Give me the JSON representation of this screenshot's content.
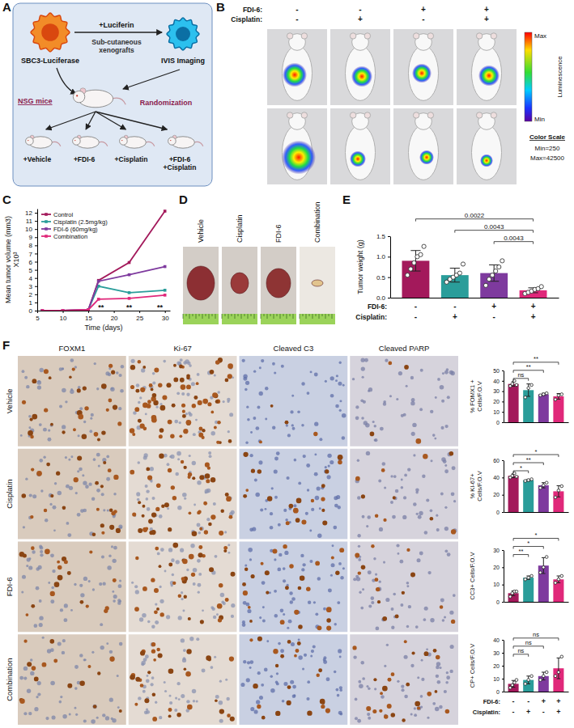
{
  "panels": {
    "A": {
      "letter": "A",
      "cell_line": "SBC3-Luciferase",
      "host": "NSG mice",
      "reagent": "+Luciferin",
      "implant": "Sub-cutaneous xenografts",
      "imaging": "IVIS Imaging",
      "randomization": "Randomization",
      "groups": [
        "+Vehicle",
        "+FDI-6",
        "+Cisplatin",
        "+FDI-6 +Cisplatin"
      ]
    },
    "B": {
      "letter": "B",
      "condition_rows": [
        {
          "label": "FDI-6:",
          "values": [
            "-",
            "-",
            "+",
            "+"
          ]
        },
        {
          "label": "Cisplatin:",
          "values": [
            "-",
            "+",
            "-",
            "+"
          ]
        }
      ],
      "scale_max": "Max",
      "scale_min": "Min",
      "scale_label": "Luminescence",
      "scale_title": "Color Scale",
      "scale_notes": [
        "Min=250",
        "Max=42500"
      ]
    },
    "D": {
      "letter": "D",
      "labels": [
        "Vehicle",
        "Cisplatin",
        "FDI-6",
        "Combination"
      ]
    },
    "F": {
      "letter": "F",
      "columns": [
        "FOXM1",
        "Ki-67",
        "Cleaved C3",
        "Cleaved PARP"
      ],
      "rows": [
        "Vehicle",
        "Cisplatin",
        "FDI-6",
        "Combination"
      ],
      "condition_rows": [
        {
          "label": "FDI-6:",
          "values": [
            "-",
            "-",
            "+",
            "+"
          ]
        },
        {
          "label": "Cisplatin:",
          "values": [
            "-",
            "+",
            "-",
            "+"
          ]
        }
      ]
    }
  },
  "chart_data": [
    {
      "panel": "C",
      "type": "line",
      "x_label": "Time (days)",
      "y_label": "Mean tumor volume (mm3) X10³",
      "x": [
        6,
        10,
        15,
        17,
        23,
        30
      ],
      "series": [
        {
          "name": "Control",
          "color": "#a3195b",
          "values": [
            0,
            0,
            0.1,
            3.7,
            5.9,
            12.2
          ]
        },
        {
          "name": "Cisplatin (2.5mg/kg)",
          "color": "#2a9d9a",
          "values": [
            0,
            0,
            0.1,
            3.0,
            2.2,
            2.5
          ]
        },
        {
          "name": "FDI-6 (60mg/kg)",
          "color": "#7e3a9e",
          "values": [
            0,
            0,
            0.1,
            3.6,
            4.4,
            5.4
          ]
        },
        {
          "name": "Combination",
          "color": "#e0287a",
          "values": [
            0,
            0,
            0.1,
            1.4,
            1.5,
            1.9
          ]
        }
      ],
      "xlim": [
        5,
        31
      ],
      "xticks": [
        5,
        10,
        15,
        20,
        25,
        30
      ],
      "ylim": [
        0,
        12.5
      ],
      "yticks": [
        0,
        1,
        2,
        3,
        4,
        5,
        6,
        7,
        8,
        9,
        10,
        11,
        12
      ],
      "legend": "top-left",
      "marker": "square",
      "line_style": "solid",
      "annotations": [
        {
          "text": "**",
          "x": 17.5,
          "y": 0.4
        },
        {
          "text": "**",
          "x": 23,
          "y": 0.4
        },
        {
          "text": "**",
          "x": 29,
          "y": 0.4
        }
      ]
    },
    {
      "panel": "E",
      "type": "bar",
      "y_label": "Tumor weight (g)",
      "categories": [
        null,
        null,
        null,
        null
      ],
      "values": [
        0.9,
        0.55,
        0.6,
        0.18
      ],
      "error": [
        0.25,
        0.17,
        0.2,
        0.06
      ],
      "points": [
        [
          0.55,
          0.7,
          0.85,
          1.0,
          1.05,
          1.25
        ],
        [
          0.38,
          0.45,
          0.5,
          0.55,
          0.6,
          0.82
        ],
        [
          0.3,
          0.45,
          0.55,
          0.65,
          0.75,
          0.9
        ],
        [
          0.1,
          0.13,
          0.16,
          0.2,
          0.22,
          0.27
        ]
      ],
      "colors": [
        "#a3195b",
        "#2a9d9a",
        "#7e3a9e",
        "#e0287a"
      ],
      "ylim": [
        0,
        1.5
      ],
      "yticks": [
        {
          "value": 0,
          "label": "0.0"
        },
        0.5,
        {
          "value": 1,
          "label": "1.0"
        },
        1.5
      ],
      "comparisons": [
        {
          "from": 2,
          "to": 3,
          "label": "0.0043"
        },
        {
          "from": 1,
          "to": 3,
          "label": "0.0043"
        },
        {
          "from": 0,
          "to": 3,
          "label": "0.0022"
        }
      ],
      "condition_rows": [
        {
          "label": "FDI-6:",
          "values": [
            "-",
            "-",
            "+",
            "+"
          ]
        },
        {
          "label": "Cisplatin:",
          "values": [
            "-",
            "+",
            "-",
            "+"
          ]
        }
      ]
    },
    {
      "type": "bar",
      "y_label": "% FOMX1 + Cells/F.O.V",
      "categories": [
        null,
        null,
        null,
        null
      ],
      "values": [
        37,
        31,
        27,
        25
      ],
      "error": [
        2.2,
        6,
        1,
        2.7
      ],
      "points": [
        [
          35,
          37,
          40,
          36
        ],
        [
          24,
          33,
          36
        ],
        [
          26,
          27,
          28
        ],
        [
          22,
          26,
          27
        ]
      ],
      "colors": [
        "#a3195b",
        "#2a9d9a",
        "#7e3a9e",
        "#e0287a"
      ],
      "ylim": [
        0,
        50
      ],
      "yticks": [
        0,
        10,
        20,
        30,
        40,
        50
      ],
      "comparisons": [
        {
          "from": 0,
          "to": 1,
          "label": "ns"
        },
        {
          "from": 0,
          "to": 2,
          "label": "**"
        },
        {
          "from": 0,
          "to": 3,
          "label": "**"
        }
      ]
    },
    {
      "type": "bar",
      "y_label": "% KI-67+ Cells/F.O.V",
      "categories": [
        null,
        null,
        null,
        null
      ],
      "values": [
        42,
        37,
        31,
        24
      ],
      "error": [
        2.2,
        1,
        3,
        6.5
      ],
      "points": [
        [
          40,
          42,
          45,
          41
        ],
        [
          36,
          37,
          38
        ],
        [
          28,
          31,
          34
        ],
        [
          17,
          25,
          30
        ]
      ],
      "colors": [
        "#a3195b",
        "#2a9d9a",
        "#7e3a9e",
        "#e0287a"
      ],
      "ylim": [
        0,
        60
      ],
      "yticks": [
        0,
        20,
        40,
        60
      ],
      "comparisons": [
        {
          "from": 0,
          "to": 1,
          "label": "*"
        },
        {
          "from": 0,
          "to": 2,
          "label": "**"
        },
        {
          "from": 0,
          "to": 3,
          "label": "*"
        }
      ]
    },
    {
      "type": "bar",
      "y_label": "CC3+ Cells/F.O.V",
      "categories": [
        null,
        null,
        null,
        null
      ],
      "values": [
        5,
        14,
        21,
        13
      ],
      "error": [
        1.4,
        1,
        4.6,
        2
      ],
      "points": [
        [
          3,
          5,
          6,
          6
        ],
        [
          13,
          14,
          15
        ],
        [
          17,
          20,
          26
        ],
        [
          11,
          13,
          15
        ]
      ],
      "colors": [
        "#a3195b",
        "#2a9d9a",
        "#7e3a9e",
        "#e0287a"
      ],
      "ylim": [
        0,
        30
      ],
      "yticks": [
        0,
        10,
        20,
        30
      ],
      "comparisons": [
        {
          "from": 0,
          "to": 1,
          "label": "**"
        },
        {
          "from": 0,
          "to": 2,
          "label": "*"
        },
        {
          "from": 0,
          "to": 3,
          "label": "*"
        }
      ]
    },
    {
      "type": "bar",
      "y_label": "CP+ Cells/F.O.V",
      "categories": [
        null,
        null,
        null,
        null
      ],
      "values": [
        6,
        9,
        12,
        18
      ],
      "error": [
        2.6,
        3,
        3,
        8
      ],
      "points": [
        [
          3,
          5,
          7,
          9
        ],
        [
          6,
          9,
          12
        ],
        [
          9,
          12,
          15
        ],
        [
          12,
          15,
          27
        ]
      ],
      "colors": [
        "#a3195b",
        "#2a9d9a",
        "#7e3a9e",
        "#e0287a"
      ],
      "ylim": [
        0,
        40
      ],
      "yticks": [
        0,
        10,
        20,
        30,
        40
      ],
      "comparisons": [
        {
          "from": 0,
          "to": 1,
          "label": "ns"
        },
        {
          "from": 0,
          "to": 2,
          "label": "ns"
        },
        {
          "from": 0,
          "to": 3,
          "label": "ns"
        }
      ]
    }
  ]
}
